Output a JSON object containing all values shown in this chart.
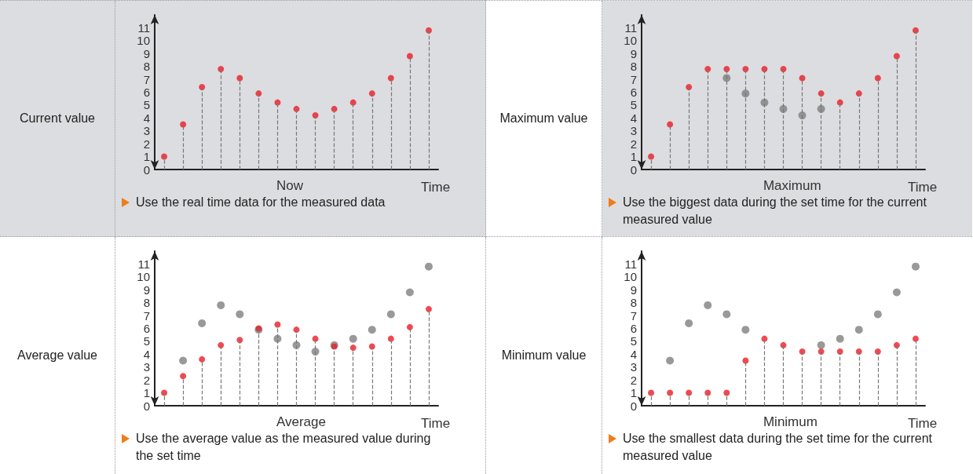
{
  "chart_data": [
    {
      "type": "scatter",
      "title": "Current value",
      "subtitle": "Use the real time data for the measured data",
      "xlabel": "Time",
      "annotations": [
        "Now"
      ],
      "categories": [
        null,
        null,
        null,
        null,
        null,
        null,
        null,
        null,
        null,
        null,
        null,
        null,
        null,
        null,
        null
      ],
      "ylim": [
        0,
        12
      ],
      "yticks": [
        0,
        1,
        2,
        3,
        4,
        5,
        6,
        7,
        8,
        9,
        10,
        11
      ],
      "marker": "circle",
      "line_style": "dashed",
      "series": [
        {
          "type": "lollipop",
          "color": "#ee1c25",
          "values": [
            1,
            3.5,
            6.4,
            7.8,
            7.1,
            5.9,
            5.2,
            4.7,
            4.2,
            4.7,
            5.2,
            5.9,
            7.1,
            8.8,
            10.8
          ]
        }
      ]
    },
    {
      "type": "scatter",
      "title": "Maximum value",
      "subtitle": "Use the biggest data during the set time for the current measured value",
      "xlabel": "Time",
      "annotations": [
        "Maximum"
      ],
      "categories": [
        null,
        null,
        null,
        null,
        null,
        null,
        null,
        null,
        null,
        null,
        null,
        null,
        null,
        null,
        null
      ],
      "ylim": [
        0,
        12
      ],
      "yticks": [
        0,
        1,
        2,
        3,
        4,
        5,
        6,
        7,
        8,
        9,
        10,
        11
      ],
      "marker": "circle",
      "line_style": "dashed",
      "series": [
        {
          "type": "scatter",
          "color": "#808080",
          "values": [
            null,
            null,
            null,
            null,
            7.1,
            5.9,
            5.2,
            4.7,
            4.2,
            4.7,
            null,
            null,
            null,
            null,
            null
          ]
        },
        {
          "type": "lollipop",
          "color": "#ee1c25",
          "values": [
            1,
            3.5,
            6.4,
            7.8,
            7.8,
            7.8,
            7.8,
            7.8,
            7.1,
            5.9,
            5.2,
            5.9,
            7.1,
            8.8,
            10.8
          ]
        }
      ]
    },
    {
      "type": "scatter",
      "title": "Average value",
      "subtitle": "Use the average value as the measured value during the set time",
      "xlabel": "Time",
      "annotations": [
        "Average"
      ],
      "categories": [
        null,
        null,
        null,
        null,
        null,
        null,
        null,
        null,
        null,
        null,
        null,
        null,
        null,
        null,
        null
      ],
      "ylim": [
        0,
        12
      ],
      "yticks": [
        0,
        1,
        2,
        3,
        4,
        5,
        6,
        7,
        8,
        9,
        10,
        11
      ],
      "marker": "circle",
      "line_style": "dashed",
      "series": [
        {
          "type": "scatter",
          "color": "#808080",
          "values": [
            null,
            3.5,
            6.4,
            7.8,
            7.1,
            5.9,
            5.2,
            4.7,
            4.2,
            4.7,
            5.2,
            5.9,
            7.1,
            8.8,
            10.8
          ]
        },
        {
          "type": "lollipop",
          "color": "#ee1c25",
          "values": [
            1,
            2.3,
            3.6,
            4.7,
            5.1,
            6.0,
            6.3,
            5.9,
            5.2,
            4.6,
            4.5,
            4.6,
            5.2,
            6.1,
            7.5
          ]
        }
      ]
    },
    {
      "type": "scatter",
      "title": "Minimum value",
      "subtitle": "Use the smallest data during the set time for the current measured value",
      "xlabel": "Time",
      "annotations": [
        "Minimum"
      ],
      "categories": [
        null,
        null,
        null,
        null,
        null,
        null,
        null,
        null,
        null,
        null,
        null,
        null,
        null,
        null,
        null
      ],
      "ylim": [
        0,
        12
      ],
      "yticks": [
        0,
        1,
        2,
        3,
        4,
        5,
        6,
        7,
        8,
        9,
        10,
        11
      ],
      "marker": "circle",
      "line_style": "dashed",
      "series": [
        {
          "type": "scatter",
          "color": "#808080",
          "values": [
            null,
            3.5,
            6.4,
            7.8,
            7.1,
            5.9,
            null,
            null,
            null,
            4.7,
            5.2,
            5.9,
            7.1,
            8.8,
            10.8
          ]
        },
        {
          "type": "lollipop",
          "color": "#ee1c25",
          "values": [
            1,
            1,
            1,
            1,
            1,
            3.5,
            5.2,
            4.7,
            4.2,
            4.2,
            4.2,
            4.2,
            4.2,
            4.7,
            5.2
          ]
        }
      ]
    }
  ]
}
